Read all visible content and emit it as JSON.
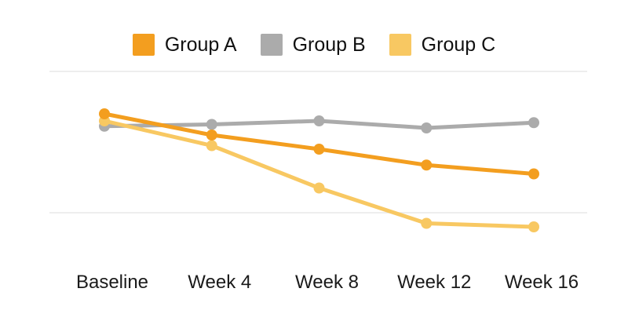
{
  "chart_data": {
    "type": "line",
    "title": "",
    "xlabel": "",
    "ylabel": "",
    "categories": [
      "Baseline",
      "Week 4",
      "Week 8",
      "Week 12",
      "Week 16"
    ],
    "series": [
      {
        "name": "Group A",
        "color": "#F39E1F",
        "values": [
          76,
          64,
          56,
          47,
          42
        ]
      },
      {
        "name": "Group B",
        "color": "#ABABAB",
        "values": [
          69,
          70,
          72,
          68,
          71
        ]
      },
      {
        "name": "Group C",
        "color": "#F8C862",
        "values": [
          72,
          58,
          34,
          14,
          12
        ]
      }
    ],
    "ylim": [
      0,
      120
    ],
    "y_axis_visible": false,
    "values_note": "y-axis is unlabeled in the image; values estimated on a relative scale where the upper gridline = 100 and the lower gridline = 20",
    "gridlines": {
      "values": [
        100,
        20
      ],
      "color": "#E9E9E9"
    },
    "legend_position": "top",
    "markers": true,
    "background": "#ffffff",
    "text_color": "#1a1a1a"
  }
}
